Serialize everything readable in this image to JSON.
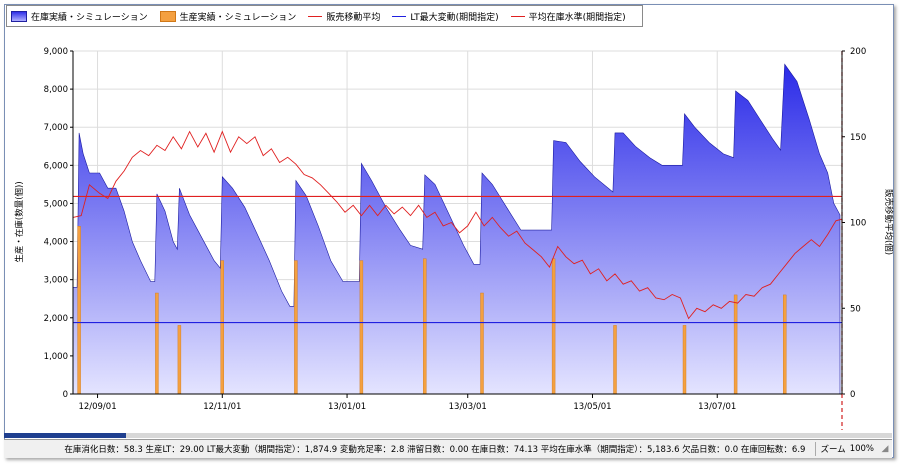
{
  "legend": {
    "items": [
      {
        "label": "在庫実績・シミュレーション",
        "swatch": "area"
      },
      {
        "label": "生産実績・シミュレーション",
        "swatch": "bar"
      },
      {
        "label": "販売移動平均",
        "swatch": "line-red"
      },
      {
        "label": "LT最大変動(期間指定)",
        "swatch": "line-blue"
      },
      {
        "label": "平均在庫水準(期間指定)",
        "swatch": "line-red"
      }
    ]
  },
  "status": {
    "text": "在庫消化日数：58.3 生産LT：29.00 LT最大変動（期間指定）：1,874.9 変動充足率：2.8 滞留日数：0.00 在庫日数：74.13 平均在庫水準（期間指定）：5,183.6 欠品日数：0.0 在庫回転数：6.9",
    "zoom_label": "ズーム",
    "zoom_value": "100%"
  },
  "colors": {
    "inventory_top": "#2a2ae8",
    "inventory_bottom": "#e4e4ff",
    "production": "#f4a040",
    "sales_avg": "#e02020",
    "lt_max": "#2020e0",
    "avg_level": "#e02020"
  },
  "chart_data": {
    "type": "area",
    "ylabel": "生産・在庫(数量(個))",
    "y2label": "販売移動平均(個)",
    "ylim": [
      0,
      9000
    ],
    "y2lim": [
      0,
      200
    ],
    "yticks": [
      "0",
      "1,000",
      "2,000",
      "3,000",
      "4,000",
      "5,000",
      "6,000",
      "7,000",
      "8,000",
      "9,000"
    ],
    "y2ticks": [
      "0",
      "50",
      "100",
      "150",
      "200"
    ],
    "xlim": [
      "2012-08-20",
      "2013-08-31"
    ],
    "xticks": [
      {
        "date": "2012-09-01",
        "label": "12/09/01"
      },
      {
        "date": "2012-11-01",
        "label": "12/11/01"
      },
      {
        "date": "2013-01-01",
        "label": "13/01/01"
      },
      {
        "date": "2013-03-01",
        "label": "13/03/01"
      },
      {
        "date": "2013-05-01",
        "label": "13/05/01"
      },
      {
        "date": "2013-07-01",
        "label": "13/07/01"
      }
    ],
    "series": [
      {
        "name": "在庫実績・シミュレーション",
        "kind": "area",
        "axis": "left",
        "points": [
          [
            "2012-08-20",
            2800
          ],
          [
            "2012-08-22",
            2800
          ],
          [
            "2012-08-23",
            6850
          ],
          [
            "2012-08-25",
            6300
          ],
          [
            "2012-08-28",
            5800
          ],
          [
            "2012-09-02",
            5800
          ],
          [
            "2012-09-06",
            5400
          ],
          [
            "2012-09-10",
            5400
          ],
          [
            "2012-09-14",
            4800
          ],
          [
            "2012-09-18",
            4000
          ],
          [
            "2012-09-22",
            3500
          ],
          [
            "2012-09-27",
            2950
          ],
          [
            "2012-09-29",
            2950
          ],
          [
            "2012-09-30",
            5250
          ],
          [
            "2012-10-04",
            4800
          ],
          [
            "2012-10-08",
            4000
          ],
          [
            "2012-10-10",
            3800
          ],
          [
            "2012-10-11",
            5400
          ],
          [
            "2012-10-16",
            4700
          ],
          [
            "2012-10-22",
            4100
          ],
          [
            "2012-10-28",
            3500
          ],
          [
            "2012-10-31",
            3300
          ],
          [
            "2012-11-01",
            5700
          ],
          [
            "2012-11-06",
            5400
          ],
          [
            "2012-11-12",
            4900
          ],
          [
            "2012-11-18",
            4200
          ],
          [
            "2012-11-24",
            3500
          ],
          [
            "2012-11-30",
            2700
          ],
          [
            "2012-12-04",
            2300
          ],
          [
            "2012-12-06",
            2300
          ],
          [
            "2012-12-07",
            5600
          ],
          [
            "2012-12-12",
            5200
          ],
          [
            "2012-12-18",
            4400
          ],
          [
            "2012-12-24",
            3500
          ],
          [
            "2012-12-30",
            2950
          ],
          [
            "2013-01-07",
            2950
          ],
          [
            "2013-01-08",
            6050
          ],
          [
            "2013-01-13",
            5600
          ],
          [
            "2013-01-20",
            4900
          ],
          [
            "2013-01-27",
            4300
          ],
          [
            "2013-02-01",
            3900
          ],
          [
            "2013-02-07",
            3800
          ],
          [
            "2013-02-08",
            5750
          ],
          [
            "2013-02-13",
            5500
          ],
          [
            "2013-02-20",
            4700
          ],
          [
            "2013-02-27",
            3900
          ],
          [
            "2013-03-04",
            3400
          ],
          [
            "2013-03-07",
            3400
          ],
          [
            "2013-03-08",
            5800
          ],
          [
            "2013-03-13",
            5500
          ],
          [
            "2013-03-20",
            4900
          ],
          [
            "2013-03-27",
            4300
          ],
          [
            "2013-04-11",
            4300
          ],
          [
            "2013-04-12",
            6650
          ],
          [
            "2013-04-18",
            6600
          ],
          [
            "2013-04-25",
            6100
          ],
          [
            "2013-05-02",
            5700
          ],
          [
            "2013-05-11",
            5300
          ],
          [
            "2013-05-12",
            6850
          ],
          [
            "2013-05-16",
            6850
          ],
          [
            "2013-05-22",
            6500
          ],
          [
            "2013-05-29",
            6200
          ],
          [
            "2013-06-04",
            6000
          ],
          [
            "2013-06-14",
            6000
          ],
          [
            "2013-06-15",
            7350
          ],
          [
            "2013-06-20",
            7000
          ],
          [
            "2013-06-27",
            6600
          ],
          [
            "2013-07-04",
            6300
          ],
          [
            "2013-07-09",
            6200
          ],
          [
            "2013-07-10",
            7950
          ],
          [
            "2013-07-16",
            7700
          ],
          [
            "2013-07-22",
            7200
          ],
          [
            "2013-07-28",
            6700
          ],
          [
            "2013-08-01",
            6400
          ],
          [
            "2013-08-03",
            8650
          ],
          [
            "2013-08-09",
            8200
          ],
          [
            "2013-08-15",
            7200
          ],
          [
            "2013-08-20",
            6300
          ],
          [
            "2013-08-24",
            5800
          ],
          [
            "2013-08-27",
            5000
          ],
          [
            "2013-08-30",
            4700
          ]
        ]
      },
      {
        "name": "生産実績・シミュレーション",
        "kind": "bar",
        "axis": "left",
        "points": [
          [
            "2012-08-23",
            4400
          ],
          [
            "2012-09-30",
            2650
          ],
          [
            "2012-10-11",
            1800
          ],
          [
            "2012-11-01",
            3500
          ],
          [
            "2012-12-07",
            3500
          ],
          [
            "2013-01-08",
            3500
          ],
          [
            "2013-02-08",
            3550
          ],
          [
            "2013-03-08",
            2650
          ],
          [
            "2013-04-12",
            3550
          ],
          [
            "2013-05-12",
            1800
          ],
          [
            "2013-06-15",
            1800
          ],
          [
            "2013-07-10",
            2600
          ],
          [
            "2013-08-03",
            2600
          ]
        ]
      },
      {
        "name": "販売移動平均",
        "kind": "line",
        "axis": "right",
        "points": [
          [
            "2012-08-20",
            103
          ],
          [
            "2012-08-24",
            104
          ],
          [
            "2012-08-28",
            122
          ],
          [
            "2012-09-02",
            117
          ],
          [
            "2012-09-06",
            114
          ],
          [
            "2012-09-10",
            124
          ],
          [
            "2012-09-14",
            130
          ],
          [
            "2012-09-18",
            138
          ],
          [
            "2012-09-22",
            142
          ],
          [
            "2012-09-26",
            139
          ],
          [
            "2012-09-30",
            145
          ],
          [
            "2012-10-04",
            142
          ],
          [
            "2012-10-08",
            150
          ],
          [
            "2012-10-12",
            143
          ],
          [
            "2012-10-16",
            153
          ],
          [
            "2012-10-20",
            144
          ],
          [
            "2012-10-24",
            152
          ],
          [
            "2012-10-28",
            141
          ],
          [
            "2012-11-01",
            153
          ],
          [
            "2012-11-05",
            141
          ],
          [
            "2012-11-09",
            150
          ],
          [
            "2012-11-13",
            146
          ],
          [
            "2012-11-17",
            150
          ],
          [
            "2012-11-21",
            139
          ],
          [
            "2012-11-25",
            143
          ],
          [
            "2012-11-29",
            135
          ],
          [
            "2012-12-03",
            138
          ],
          [
            "2012-12-07",
            134
          ],
          [
            "2012-12-11",
            128
          ],
          [
            "2012-12-15",
            126
          ],
          [
            "2012-12-19",
            122
          ],
          [
            "2012-12-23",
            117
          ],
          [
            "2012-12-27",
            112
          ],
          [
            "2012-12-31",
            106
          ],
          [
            "2013-01-04",
            110
          ],
          [
            "2013-01-08",
            104
          ],
          [
            "2013-01-12",
            110
          ],
          [
            "2013-01-16",
            104
          ],
          [
            "2013-01-20",
            110
          ],
          [
            "2013-01-24",
            105
          ],
          [
            "2013-01-28",
            109
          ],
          [
            "2013-02-01",
            104
          ],
          [
            "2013-02-05",
            110
          ],
          [
            "2013-02-09",
            103
          ],
          [
            "2013-02-13",
            106
          ],
          [
            "2013-02-17",
            98
          ],
          [
            "2013-02-21",
            100
          ],
          [
            "2013-02-25",
            94
          ],
          [
            "2013-03-01",
            98
          ],
          [
            "2013-03-05",
            106
          ],
          [
            "2013-03-09",
            98
          ],
          [
            "2013-03-13",
            103
          ],
          [
            "2013-03-17",
            97
          ],
          [
            "2013-03-21",
            92
          ],
          [
            "2013-03-25",
            95
          ],
          [
            "2013-03-29",
            88
          ],
          [
            "2013-04-02",
            84
          ],
          [
            "2013-04-06",
            80
          ],
          [
            "2013-04-10",
            74
          ],
          [
            "2013-04-14",
            86
          ],
          [
            "2013-04-18",
            80
          ],
          [
            "2013-04-22",
            76
          ],
          [
            "2013-04-26",
            78
          ],
          [
            "2013-04-30",
            70
          ],
          [
            "2013-05-04",
            73
          ],
          [
            "2013-05-08",
            66
          ],
          [
            "2013-05-12",
            70
          ],
          [
            "2013-05-16",
            64
          ],
          [
            "2013-05-20",
            66
          ],
          [
            "2013-05-24",
            60
          ],
          [
            "2013-05-28",
            62
          ],
          [
            "2013-06-01",
            56
          ],
          [
            "2013-06-05",
            55
          ],
          [
            "2013-06-09",
            58
          ],
          [
            "2013-06-13",
            56
          ],
          [
            "2013-06-17",
            44
          ],
          [
            "2013-06-21",
            50
          ],
          [
            "2013-06-25",
            48
          ],
          [
            "2013-06-29",
            52
          ],
          [
            "2013-07-03",
            50
          ],
          [
            "2013-07-07",
            54
          ],
          [
            "2013-07-11",
            53
          ],
          [
            "2013-07-15",
            58
          ],
          [
            "2013-07-19",
            57
          ],
          [
            "2013-07-23",
            62
          ],
          [
            "2013-07-27",
            64
          ],
          [
            "2013-07-31",
            70
          ],
          [
            "2013-08-04",
            76
          ],
          [
            "2013-08-08",
            82
          ],
          [
            "2013-08-12",
            86
          ],
          [
            "2013-08-16",
            90
          ],
          [
            "2013-08-20",
            86
          ],
          [
            "2013-08-24",
            93
          ],
          [
            "2013-08-28",
            101
          ],
          [
            "2013-08-31",
            102
          ]
        ]
      },
      {
        "name": "LT最大変動(期間指定)",
        "kind": "hline",
        "axis": "left",
        "value": 1874.9
      },
      {
        "name": "平均在庫水準(期間指定)",
        "kind": "hline",
        "axis": "left",
        "value": 5183.6
      }
    ],
    "marker_date": "2013-08-31"
  }
}
